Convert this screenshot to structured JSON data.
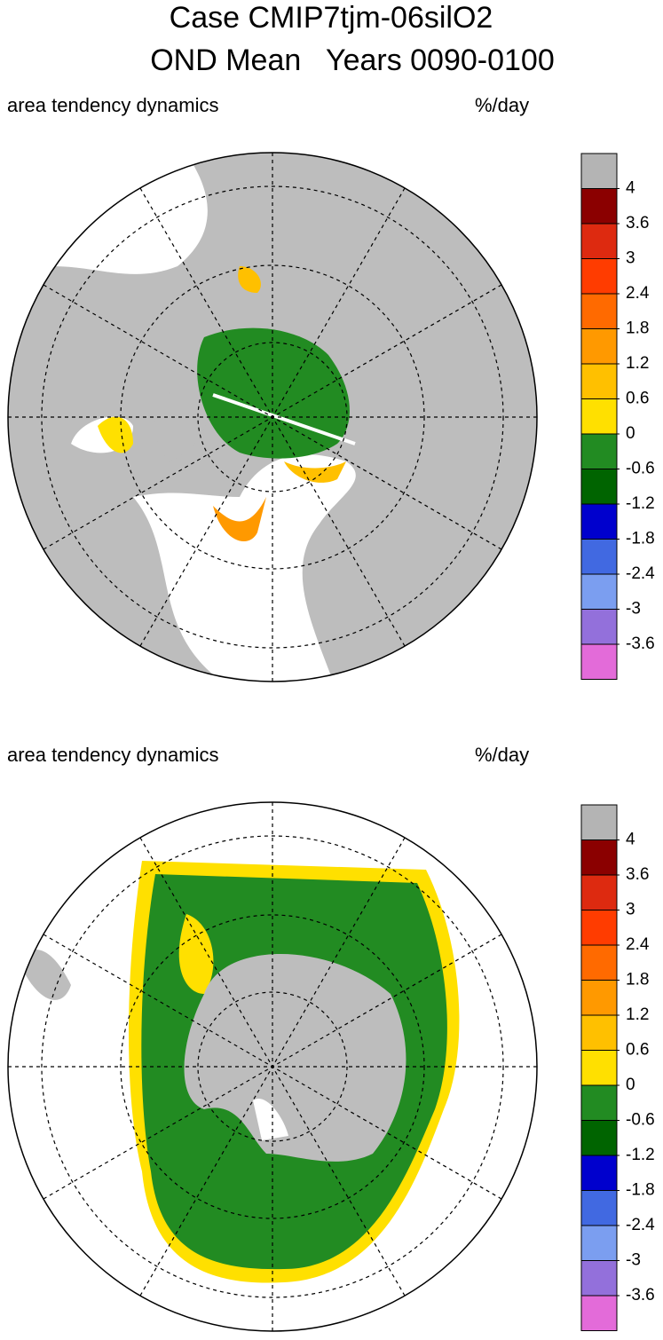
{
  "title": [
    "Case CMIP7tjm-06silO2",
    "OND Mean   Years 0090-0100"
  ],
  "panels": [
    {
      "label": "area tendency dynamics",
      "units": "%/day"
    },
    {
      "label": "area tendency dynamics",
      "units": "%/day"
    }
  ],
  "colorbar": {
    "levels": [
      4,
      3.6,
      3,
      2.4,
      1.8,
      1.2,
      0.6,
      0,
      -0.6,
      -1.2,
      -1.8,
      -2.4,
      -3,
      -3.6
    ],
    "colors": [
      "#b4b4b4",
      "#8b0000",
      "#dd2a10",
      "#ff3c00",
      "#ff6a00",
      "#ff9900",
      "#ffc000",
      "#ffe000",
      "#228b22",
      "#006400",
      "#0000cd",
      "#4169e1",
      "#7b9ef0",
      "#9370db",
      "#e36bd9"
    ]
  }
}
